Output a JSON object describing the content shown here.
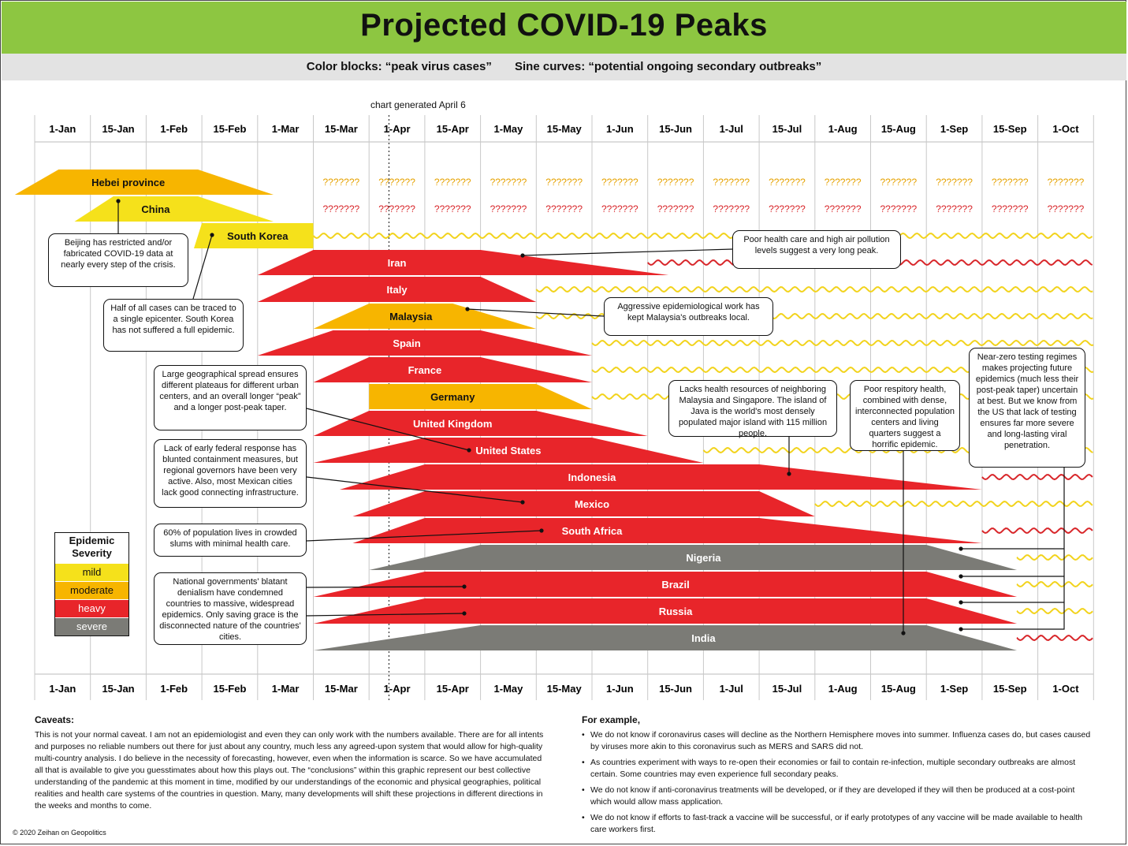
{
  "title": "Projected COVID-19 Peaks",
  "subtitle": "Color blocks: “peak virus cases”       Sine curves: “potential ongoing secondary outbreaks”",
  "generated_note": "chart generated April 6",
  "colors": {
    "mild": "#f5e11b",
    "moderate": "#f7b500",
    "heavy": "#e8252a",
    "severe": "#7b7b76",
    "wave_mild": "#f2d31c",
    "wave_heavy": "#d8262a",
    "title_bar": "#8dc641"
  },
  "chart_data": {
    "type": "timeline",
    "x_ticks": [
      "1-Jan",
      "15-Jan",
      "1-Feb",
      "15-Feb",
      "1-Mar",
      "15-Mar",
      "1-Apr",
      "15-Apr",
      "1-May",
      "15-May",
      "1-Jun",
      "15-Jun",
      "1-Jul",
      "15-Jul",
      "1-Aug",
      "15-Aug",
      "1-Sep",
      "15-Sep",
      "1-Oct"
    ],
    "generated_date": "6-Apr",
    "unknown_marker": "???????",
    "rows": [
      {
        "name": "Hebei province",
        "severity": "moderate",
        "start": "27-Dec",
        "peak_start": "7-Jan",
        "peak_end": "14-Feb",
        "end": "5-Mar",
        "unknown_from": "15-Mar"
      },
      {
        "name": "China",
        "severity": "mild",
        "start": "11-Jan",
        "peak_start": "22-Jan",
        "peak_end": "14-Feb",
        "end": "5-Mar",
        "unknown_from": "15-Mar"
      },
      {
        "name": "South Korea",
        "severity": "mild",
        "start": "13-Feb",
        "peak_start": "15-Feb",
        "peak_end": "15-Mar",
        "end": "15-Mar",
        "wave_from": "15-Mar",
        "wave_severity": "mild"
      },
      {
        "name": "Iran",
        "severity": "heavy",
        "start": "1-Mar",
        "peak_start": "15-Mar",
        "peak_end": "1-May",
        "end": "21-Jun",
        "wave_from": "15-Jun",
        "wave_severity": "heavy"
      },
      {
        "name": "Italy",
        "severity": "heavy",
        "start": "1-Mar",
        "peak_start": "15-Mar",
        "peak_end": "1-May",
        "end": "15-May",
        "wave_from": "15-May",
        "wave_severity": "mild"
      },
      {
        "name": "Malaysia",
        "severity": "moderate",
        "start": "15-Mar",
        "peak_start": "1-Apr",
        "peak_end": "23-Apr",
        "end": "15-May",
        "wave_from": "15-May",
        "wave_severity": "mild"
      },
      {
        "name": "Spain",
        "severity": "heavy",
        "start": "1-Mar",
        "peak_start": "21-Mar",
        "peak_end": "1-May",
        "end": "1-Jun",
        "wave_from": "1-Jun",
        "wave_severity": "mild"
      },
      {
        "name": "France",
        "severity": "heavy",
        "start": "15-Mar",
        "peak_start": "1-Apr",
        "peak_end": "1-May",
        "end": "1-Jun",
        "wave_from": "1-Jun",
        "wave_severity": "mild"
      },
      {
        "name": "Germany",
        "severity": "moderate",
        "start": "1-Apr",
        "peak_start": "1-Apr",
        "peak_end": "15-May",
        "end": "1-Jun",
        "wave_from": "1-Jun",
        "wave_severity": "mild"
      },
      {
        "name": "United Kingdom",
        "severity": "heavy",
        "start": "15-Mar",
        "peak_start": "1-Apr",
        "peak_end": "15-May",
        "end": "15-Jun"
      },
      {
        "name": "United States",
        "severity": "heavy",
        "start": "15-Mar",
        "peak_start": "15-Apr",
        "peak_end": "1-Jun",
        "end": "1-Jul",
        "wave_from": "1-Jul",
        "wave_severity": "mild"
      },
      {
        "name": "Indonesia",
        "severity": "heavy",
        "start": "23-Mar",
        "peak_start": "15-Apr",
        "peak_end": "15-Jul",
        "end": "15-Sep",
        "wave_from": "15-Sep",
        "wave_severity": "heavy"
      },
      {
        "name": "Mexico",
        "severity": "heavy",
        "start": "27-Mar",
        "peak_start": "15-Apr",
        "peak_end": "15-Jul",
        "end": "1-Aug",
        "wave_from": "1-Aug",
        "wave_severity": "mild"
      },
      {
        "name": "South Africa",
        "severity": "heavy",
        "start": "27-Mar",
        "peak_start": "15-Apr",
        "peak_end": "15-Jul",
        "end": "15-Sep",
        "wave_from": "15-Sep",
        "wave_severity": "heavy"
      },
      {
        "name": "Nigeria",
        "severity": "severe",
        "start": "1-Apr",
        "peak_start": "1-May",
        "peak_end": "1-Sep",
        "end": "25-Sep",
        "wave_from": "25-Sep",
        "wave_severity": "mild"
      },
      {
        "name": "Brazil",
        "severity": "heavy",
        "start": "15-Mar",
        "peak_start": "15-Apr",
        "peak_end": "1-Sep",
        "end": "25-Sep",
        "wave_from": "25-Sep",
        "wave_severity": "mild"
      },
      {
        "name": "Russia",
        "severity": "heavy",
        "start": "15-Mar",
        "peak_start": "15-Apr",
        "peak_end": "1-Sep",
        "end": "25-Sep",
        "wave_from": "25-Sep",
        "wave_severity": "mild"
      },
      {
        "name": "India",
        "severity": "severe",
        "start": "15-Mar",
        "peak_start": "1-May",
        "peak_end": "1-Sep",
        "end": "25-Sep",
        "wave_from": "25-Sep",
        "wave_severity": "heavy"
      }
    ]
  },
  "callouts": [
    {
      "id": "china",
      "text": "Beijing has restricted and/or fabricated COVID-19 data at nearly every step of the crisis."
    },
    {
      "id": "south-korea",
      "text": "Half of all cases can be traced to a single epicenter. South Korea has not suffered a full epidemic."
    },
    {
      "id": "united-states",
      "text": "Large geographical spread ensures different plateaus for different urban centers, and an overall longer “peak” and a longer post-peak taper."
    },
    {
      "id": "mexico",
      "text": "Lack of early federal response has blunted containment measures, but regional governors have been very active. Also, most Mexican cities lack good connecting infrastructure."
    },
    {
      "id": "south-africa",
      "text": "60% of population lives in crowded slums with minimal health care."
    },
    {
      "id": "brazil-russia",
      "text": "National governments' blatant denialism have condemned countries to massive, widespread epidemics. Only saving grace is the disconnected nature of the countries' cities."
    },
    {
      "id": "iran",
      "text": "Poor health care and high air pollution levels suggest a very long peak."
    },
    {
      "id": "malaysia",
      "text": "Aggressive epidemiological work has kept Malaysia's outbreaks local."
    },
    {
      "id": "indonesia",
      "text": "Lacks health resources of neighboring Malaysia and Singapore. The island of Java is the world's most densely populated major island with 115 million people."
    },
    {
      "id": "india",
      "text": "Poor respitory health, combined with dense, interconnected population centers and living quarters suggest a horrific epidemic."
    },
    {
      "id": "africa",
      "text": "Near-zero testing regimes makes projecting future epidemics (much less their post-peak taper) uncertain at best. But we know from the US that lack of testing ensures far more severe and long-lasting viral penetration."
    }
  ],
  "legend": {
    "title": "Epidemic Severity",
    "items": [
      {
        "label": "mild",
        "color": "#f5e11b",
        "text_color": "#111"
      },
      {
        "label": "moderate",
        "color": "#f7b500",
        "text_color": "#111"
      },
      {
        "label": "heavy",
        "color": "#e8252a",
        "text_color": "#fff"
      },
      {
        "label": "severe",
        "color": "#7b7b76",
        "text_color": "#fff"
      }
    ]
  },
  "caveats": {
    "title": "Caveats:",
    "body": "This is not your normal caveat. I am not an epidemiologist and even they can only work with the numbers available. There are for all intents and purposes no reliable numbers out there for just about any country, much less any agreed-upon system that would allow for high-quality multi-country analysis. I do believe in the necessity of forecasting, however, even when the information is scarce. So we have accumulated all that is available to give you guesstimates about how this plays out. The “conclusions” within this graphic represent our best collective understanding of the pandemic at this moment in time, modified by our understandings of the economic and physical geographies, political realities and health care systems of the countries in question. Many, many developments will shift these projections in different directions in the weeks and months to come."
  },
  "examples": {
    "title": "For example,",
    "items": [
      "We do not know if coronavirus cases will decline as the Northern Hemisphere moves into summer. Influenza cases do, but cases caused by viruses more akin to this coronavirus such as MERS and SARS did not.",
      "As countries experiment with ways to re-open their economies or fail to contain re-infection, multiple secondary outbreaks are almost certain. Some countries may even experience full secondary peaks.",
      "We do not know if anti-coronavirus treatments will be developed, or if they are developed if they will then be produced at a cost-point which would allow mass application.",
      "We do not know if efforts to fast-track a vaccine will be successful, or if early prototypes of any vaccine will be made available to health care workers first."
    ]
  },
  "copyright": "© 2020 Zeihan on Geopolitics"
}
